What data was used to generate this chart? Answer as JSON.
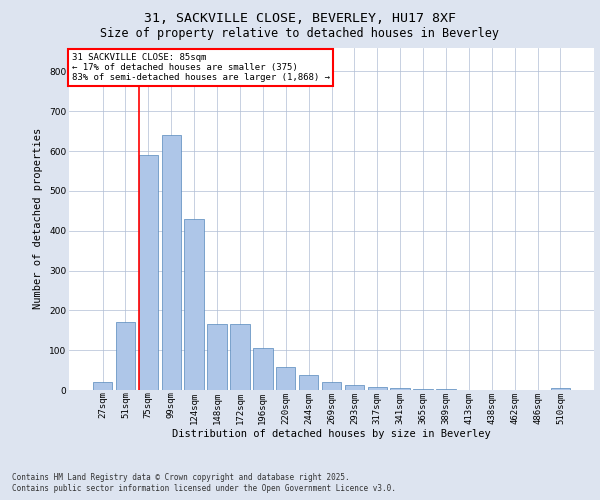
{
  "title_line1": "31, SACKVILLE CLOSE, BEVERLEY, HU17 8XF",
  "title_line2": "Size of property relative to detached houses in Beverley",
  "xlabel": "Distribution of detached houses by size in Beverley",
  "ylabel": "Number of detached properties",
  "categories": [
    "27sqm",
    "51sqm",
    "75sqm",
    "99sqm",
    "124sqm",
    "148sqm",
    "172sqm",
    "196sqm",
    "220sqm",
    "244sqm",
    "269sqm",
    "293sqm",
    "317sqm",
    "341sqm",
    "365sqm",
    "389sqm",
    "413sqm",
    "438sqm",
    "462sqm",
    "486sqm",
    "510sqm"
  ],
  "values": [
    20,
    170,
    590,
    640,
    430,
    165,
    165,
    105,
    58,
    38,
    20,
    13,
    8,
    5,
    2,
    3,
    1,
    0,
    0,
    0,
    5
  ],
  "bar_color": "#aec6e8",
  "bar_edge_color": "#5588bb",
  "vline_index": 2,
  "vline_color": "red",
  "annotation_box_text": "31 SACKVILLE CLOSE: 85sqm\n← 17% of detached houses are smaller (375)\n83% of semi-detached houses are larger (1,868) →",
  "annotation_box_color": "red",
  "annotation_box_bg": "white",
  "annotation_fontsize": 6.5,
  "ylim": [
    0,
    860
  ],
  "yticks": [
    0,
    100,
    200,
    300,
    400,
    500,
    600,
    700,
    800
  ],
  "background_color": "#dde4f0",
  "plot_bg_color": "white",
  "grid_color": "#b0bdd4",
  "footer_line1": "Contains HM Land Registry data © Crown copyright and database right 2025.",
  "footer_line2": "Contains public sector information licensed under the Open Government Licence v3.0.",
  "title_fontsize": 9.5,
  "subtitle_fontsize": 8.5,
  "axis_label_fontsize": 7.5,
  "tick_fontsize": 6.5,
  "footer_fontsize": 5.5
}
